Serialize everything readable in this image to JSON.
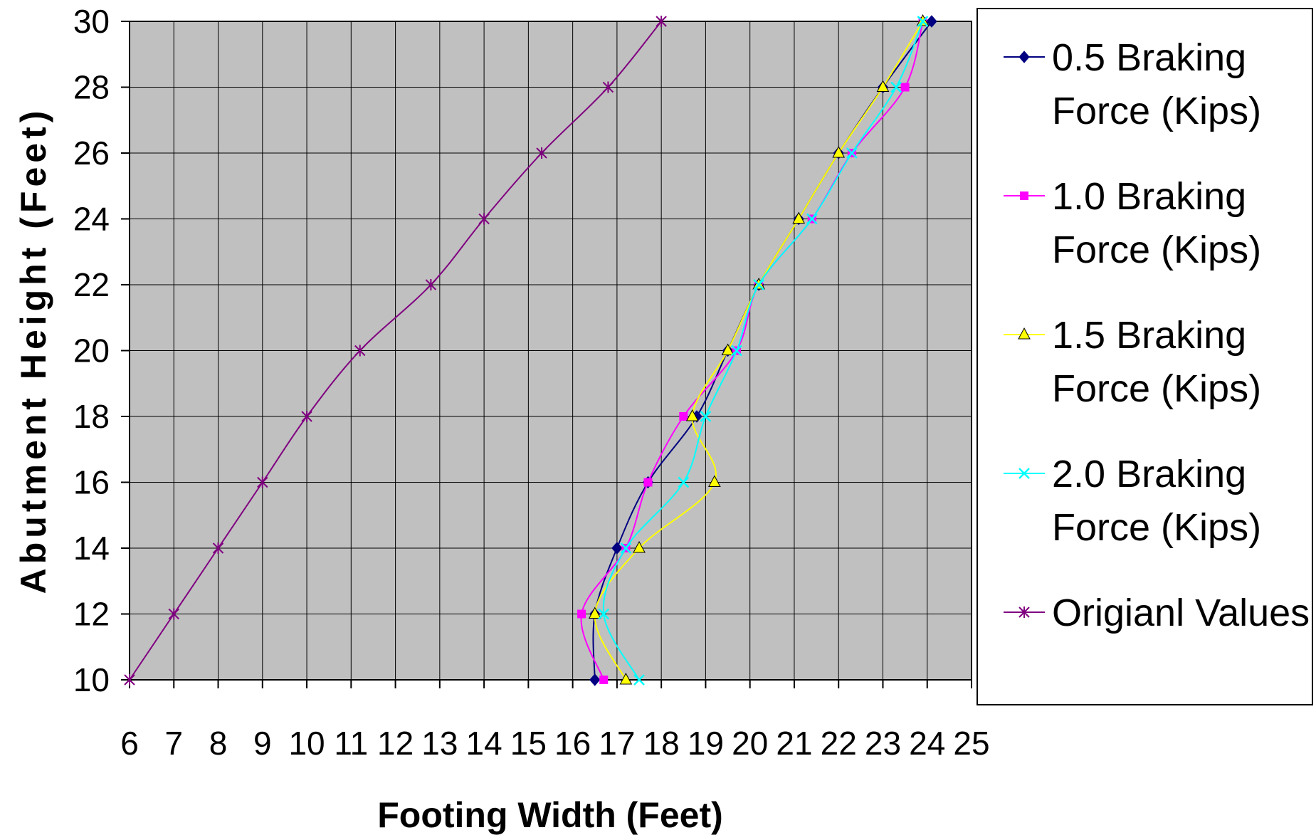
{
  "chart_data": {
    "type": "line",
    "xlabel": "Footing Width (Feet)",
    "ylabel": "Abutment Height (Feet)",
    "xlim": [
      6,
      25
    ],
    "ylim": [
      10,
      30
    ],
    "x_ticks": [
      "6",
      "7",
      "8",
      "9",
      "10",
      "11",
      "12",
      "13",
      "14",
      "15",
      "16",
      "17",
      "18",
      "19",
      "20",
      "21",
      "22",
      "23",
      "24",
      "25"
    ],
    "y_ticks": [
      "10",
      "12",
      "14",
      "16",
      "18",
      "20",
      "22",
      "24",
      "26",
      "28",
      "30"
    ],
    "grid": true,
    "plot_background": "#c0c0c0",
    "legend_position": "right",
    "series": [
      {
        "name_lines": [
          "0.5 Braking",
          "Force (Kips)"
        ],
        "color": "#000080",
        "marker": "diamond",
        "points": [
          [
            16.5,
            10
          ],
          [
            16.5,
            12
          ],
          [
            17.0,
            14
          ],
          [
            17.7,
            16
          ],
          [
            18.8,
            18
          ],
          [
            19.5,
            20
          ],
          [
            20.2,
            22
          ],
          [
            21.1,
            24
          ],
          [
            22.0,
            26
          ],
          [
            23.0,
            28
          ],
          [
            24.1,
            30
          ]
        ]
      },
      {
        "name_lines": [
          "1.0 Braking",
          "Force (Kips)"
        ],
        "color": "#ff00ff",
        "marker": "square",
        "points": [
          [
            16.7,
            10
          ],
          [
            16.2,
            12
          ],
          [
            17.2,
            14
          ],
          [
            17.7,
            16
          ],
          [
            18.5,
            18
          ],
          [
            19.7,
            20
          ],
          [
            20.2,
            22
          ],
          [
            21.4,
            24
          ],
          [
            22.3,
            26
          ],
          [
            23.5,
            28
          ],
          [
            23.9,
            30
          ]
        ]
      },
      {
        "name_lines": [
          "1.5 Braking",
          "Force (Kips)"
        ],
        "color": "#ffff00",
        "marker": "triangle",
        "points": [
          [
            17.2,
            10
          ],
          [
            16.5,
            12
          ],
          [
            17.5,
            14
          ],
          [
            19.2,
            16
          ],
          [
            18.7,
            18
          ],
          [
            19.5,
            20
          ],
          [
            20.2,
            22
          ],
          [
            21.1,
            24
          ],
          [
            22.0,
            26
          ],
          [
            23.0,
            28
          ],
          [
            23.9,
            30
          ]
        ]
      },
      {
        "name_lines": [
          "2.0 Braking",
          "Force (Kips)"
        ],
        "color": "#00ffff",
        "marker": "x",
        "points": [
          [
            17.5,
            10
          ],
          [
            16.7,
            12
          ],
          [
            17.2,
            14
          ],
          [
            18.5,
            16
          ],
          [
            19.0,
            18
          ],
          [
            19.7,
            20
          ],
          [
            20.2,
            22
          ],
          [
            21.4,
            24
          ],
          [
            22.3,
            26
          ],
          [
            23.3,
            28
          ],
          [
            23.9,
            30
          ]
        ]
      },
      {
        "name_lines": [
          "Origianl Values"
        ],
        "color": "#800080",
        "marker": "star",
        "points": [
          [
            6,
            10
          ],
          [
            7,
            12
          ],
          [
            8,
            14
          ],
          [
            9,
            16
          ],
          [
            10,
            18
          ],
          [
            11.2,
            20
          ],
          [
            12.8,
            22
          ],
          [
            14,
            24
          ],
          [
            15.3,
            26
          ],
          [
            16.8,
            28
          ],
          [
            18,
            30
          ]
        ]
      }
    ]
  }
}
